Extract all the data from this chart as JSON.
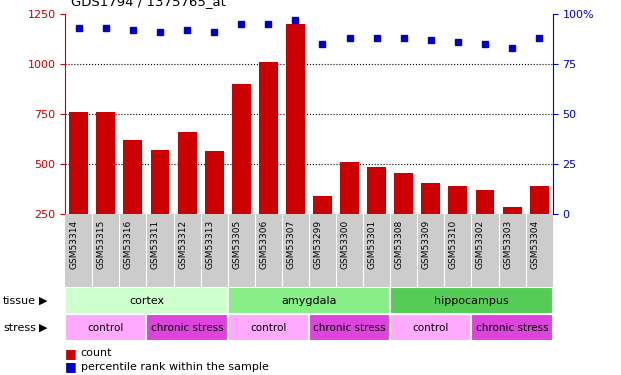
{
  "title": "GDS1794 / 1375765_at",
  "samples": [
    "GSM53314",
    "GSM53315",
    "GSM53316",
    "GSM53311",
    "GSM53312",
    "GSM53313",
    "GSM53305",
    "GSM53306",
    "GSM53307",
    "GSM53299",
    "GSM53300",
    "GSM53301",
    "GSM53308",
    "GSM53309",
    "GSM53310",
    "GSM53302",
    "GSM53303",
    "GSM53304"
  ],
  "counts": [
    760,
    760,
    620,
    570,
    660,
    565,
    900,
    1010,
    1200,
    340,
    510,
    485,
    455,
    405,
    390,
    370,
    285,
    390
  ],
  "percentiles": [
    93,
    93,
    92,
    91,
    92,
    91,
    95,
    95,
    97,
    85,
    88,
    88,
    88,
    87,
    86,
    85,
    83,
    88
  ],
  "bar_color": "#cc0000",
  "dot_color": "#0000cc",
  "ylim_left": [
    250,
    1250
  ],
  "ylim_right": [
    0,
    100
  ],
  "yticks_left": [
    250,
    500,
    750,
    1000,
    1250
  ],
  "yticks_right": [
    0,
    25,
    50,
    75,
    100
  ],
  "tissues": [
    {
      "label": "cortex",
      "start": 0,
      "end": 6,
      "color": "#ccffcc"
    },
    {
      "label": "amygdala",
      "start": 6,
      "end": 12,
      "color": "#88ee88"
    },
    {
      "label": "hippocampus",
      "start": 12,
      "end": 18,
      "color": "#55cc55"
    }
  ],
  "stresses": [
    {
      "label": "control",
      "start": 0,
      "end": 3,
      "color": "#ffaaff"
    },
    {
      "label": "chronic stress",
      "start": 3,
      "end": 6,
      "color": "#dd44dd"
    },
    {
      "label": "control",
      "start": 6,
      "end": 9,
      "color": "#ffaaff"
    },
    {
      "label": "chronic stress",
      "start": 9,
      "end": 12,
      "color": "#dd44dd"
    },
    {
      "label": "control",
      "start": 12,
      "end": 15,
      "color": "#ffaaff"
    },
    {
      "label": "chronic stress",
      "start": 15,
      "end": 18,
      "color": "#dd44dd"
    }
  ],
  "xticklabel_bg": "#cccccc",
  "bg_color": "#ffffff"
}
